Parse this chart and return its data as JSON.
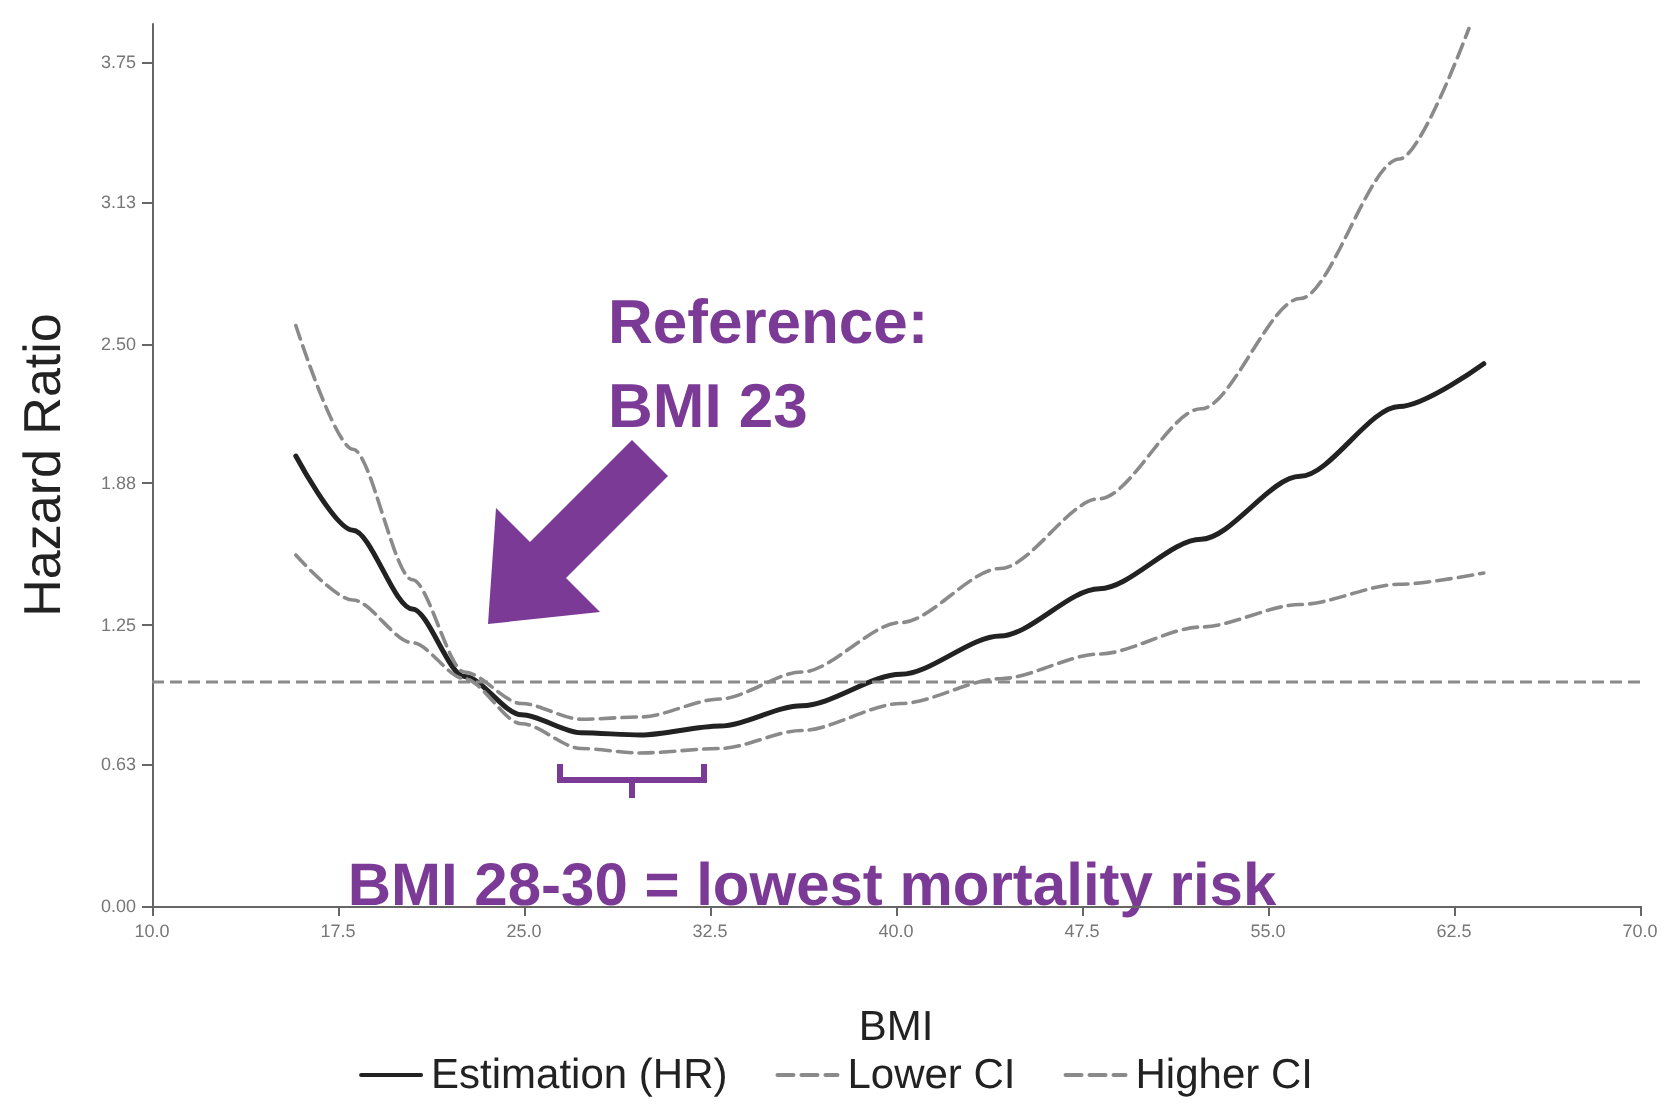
{
  "chart_data": {
    "type": "line",
    "xlabel": "BMI",
    "ylabel": "Hazard Ratio",
    "legend": "bottom",
    "grid": false,
    "marker": "none",
    "xlim": [
      10,
      70
    ],
    "xticks": [
      {
        "value": 10,
        "label": "10.0"
      },
      17.5,
      {
        "value": 25,
        "label": "25.0"
      },
      32.5,
      {
        "value": 40,
        "label": "40.0"
      },
      47.5,
      {
        "value": 55,
        "label": "55.0"
      },
      62.5,
      {
        "value": 70,
        "label": "70.0"
      }
    ],
    "ylim": [
      0,
      3.92
    ],
    "yticks": [
      {
        "value": 0,
        "label": "0.00"
      },
      0.63,
      1.25,
      1.88,
      {
        "value": 2.5,
        "label": "2.50"
      },
      3.13,
      3.75
    ],
    "series": [
      {
        "name": "Estimation (HR)",
        "color": "#222222",
        "line_style": "solid",
        "x": [
          15.8,
          18.1,
          20.5,
          22.6,
          24.9,
          27.3,
          29.7,
          32.9,
          36.2,
          40.2,
          44.2,
          48.2,
          52.3,
          56.3,
          60.3,
          63.7
        ],
        "values": [
          2.0,
          1.67,
          1.32,
          1.02,
          0.85,
          0.77,
          0.76,
          0.8,
          0.89,
          1.03,
          1.2,
          1.41,
          1.63,
          1.91,
          2.22,
          2.41
        ]
      },
      {
        "name": "Lower CI",
        "color": "#8a8a8a",
        "line_style": "dashed",
        "x": [
          15.8,
          18.1,
          20.5,
          22.6,
          24.9,
          27.3,
          29.7,
          32.9,
          36.2,
          40.2,
          44.2,
          48.2,
          52.3,
          56.3,
          60.3,
          63.7
        ],
        "values": [
          1.56,
          1.36,
          1.17,
          1.01,
          0.81,
          0.7,
          0.68,
          0.7,
          0.78,
          0.9,
          1.01,
          1.12,
          1.24,
          1.34,
          1.43,
          1.48
        ]
      },
      {
        "name": "Higher CI",
        "color": "#8a8a8a",
        "line_style": "dashed",
        "x": [
          15.8,
          18.1,
          20.5,
          22.6,
          24.9,
          27.3,
          29.7,
          32.9,
          36.2,
          40.2,
          44.2,
          48.2,
          52.3,
          56.3,
          60.3,
          63.1
        ],
        "values": [
          2.58,
          2.03,
          1.45,
          1.04,
          0.9,
          0.83,
          0.84,
          0.92,
          1.04,
          1.26,
          1.5,
          1.81,
          2.21,
          2.7,
          3.32,
          3.9
        ]
      }
    ],
    "ref_lines": [
      {
        "axis": "y",
        "value": 1.0,
        "color": "#8a8a8a",
        "line_style": "dashed"
      }
    ],
    "annotations": [
      "Reference:\nBMI 23",
      "BMI 28-30 = lowest mortality risk"
    ]
  }
}
